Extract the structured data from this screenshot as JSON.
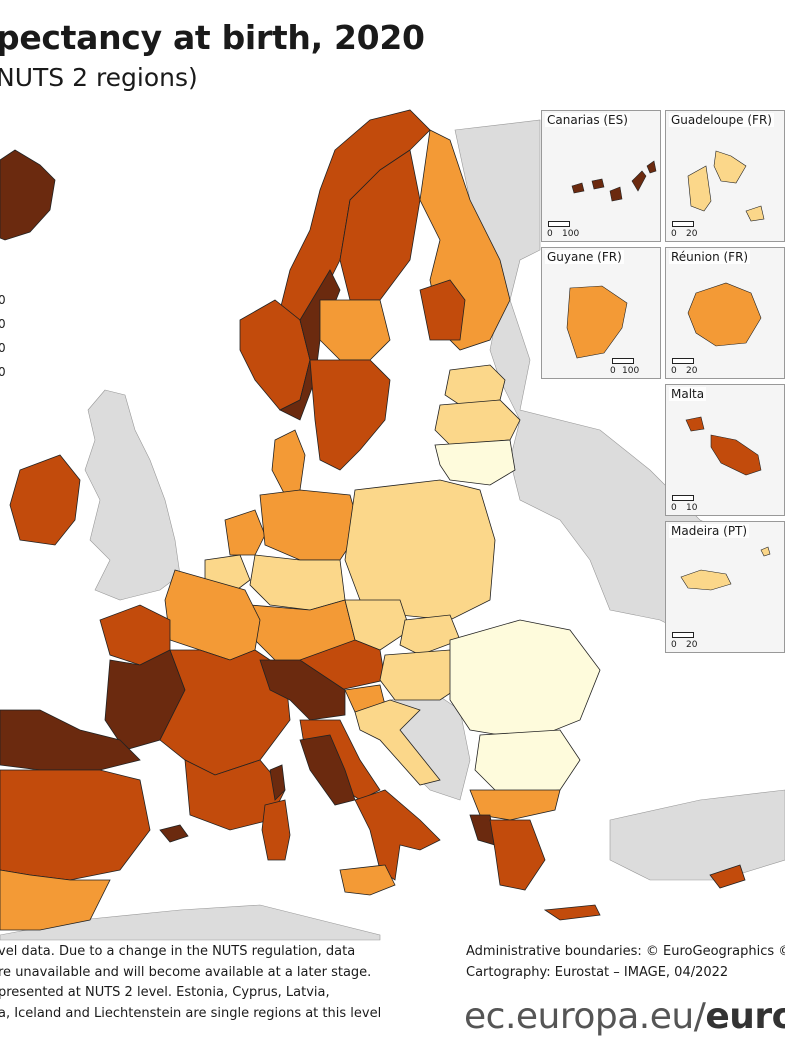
{
  "title": "pectancy at birth, 2020",
  "subtitle": "NUTS 2 regions)",
  "legend": {
    "values": [
      "0",
      "0",
      "0",
      "0"
    ],
    "colors": [
      "#6b2a0f",
      "#c24b0c",
      "#f39a36",
      "#fbd78a",
      "#fefbdc"
    ]
  },
  "colors": {
    "sea": "#ffffff",
    "non_eu_land": "#dcdcdc",
    "borders": "#222222"
  },
  "insets": [
    {
      "label": "Canarias (ES)",
      "scale_zero": "0",
      "scale_max": "100",
      "color": "#6b2a0f"
    },
    {
      "label": "Guadeloupe (FR)",
      "scale_zero": "0",
      "scale_max": "20",
      "color": "#fbd78a"
    },
    {
      "label": "Guyane (FR)",
      "scale_zero": "0",
      "scale_max": "100",
      "color": "#f39a36"
    },
    {
      "label": "Réunion (FR)",
      "scale_zero": "0",
      "scale_max": "20",
      "color": "#f39a36"
    },
    {
      "label": "Malta",
      "scale_zero": "0",
      "scale_max": "10",
      "color": "#c24b0c"
    },
    {
      "label": "Madeira (PT)",
      "scale_zero": "0",
      "scale_max": "20",
      "color": "#fbd78a"
    }
  ],
  "footer": {
    "left_lines": [
      "vel data. Due to a change in the NUTS regulation, data",
      "re unavailable and will become available at a later stage.",
      "presented at NUTS 2 level. Estonia, Cyprus, Latvia,",
      "a, Iceland and Liechtenstein are single regions at this level"
    ],
    "right_lines": [
      "Administrative boundaries: © EuroGeographics ©",
      "Cartography: Eurostat – IMAGE, 04/2022"
    ],
    "url_light": "ec.europa.eu/",
    "url_bold": "euro"
  }
}
